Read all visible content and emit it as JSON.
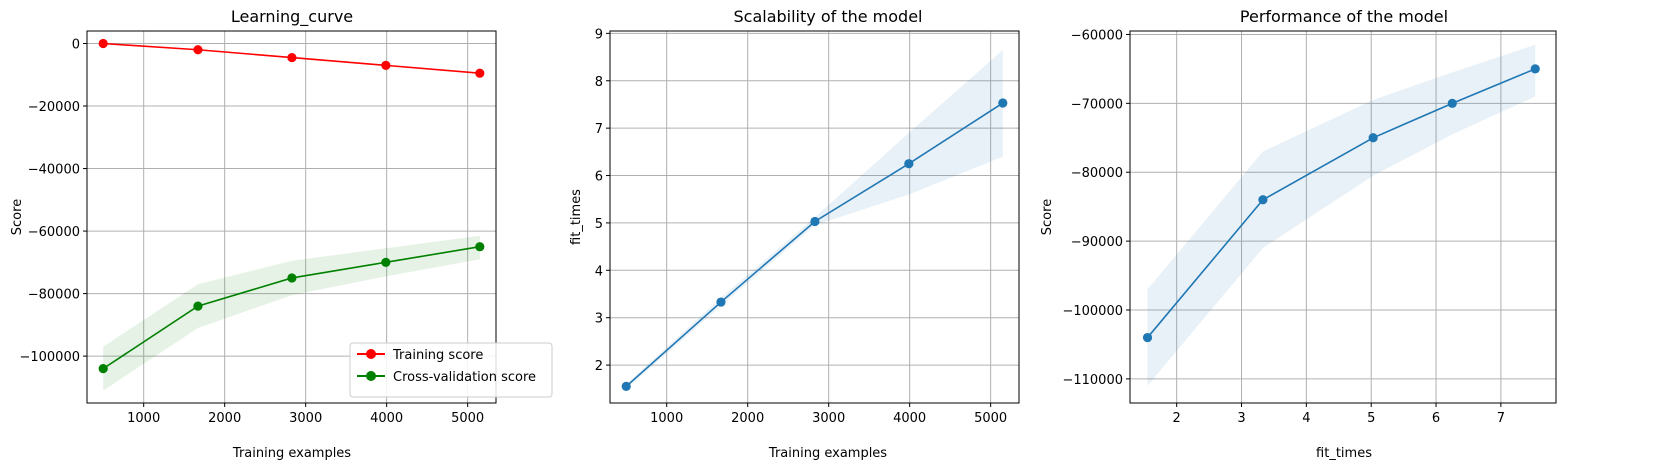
{
  "chart_data": [
    {
      "type": "line",
      "title": "Learning_curve",
      "xlabel": "Training examples",
      "ylabel": "Score",
      "xlim": [
        300,
        5350
      ],
      "ylim": [
        -115000,
        4000
      ],
      "xticks": [
        1000,
        2000,
        3000,
        4000,
        5000
      ],
      "yticks": [
        0,
        -20000,
        -40000,
        -60000,
        -80000,
        -100000
      ],
      "ytick_labels": [
        "0",
        "−20000",
        "−40000",
        "−60000",
        "−80000",
        "−100000"
      ],
      "grid": true,
      "legend": "bottom-right",
      "x": [
        500,
        1670,
        2830,
        3990,
        5150
      ],
      "series": [
        {
          "name": "Training score",
          "color": "#ff0000",
          "values": [
            0,
            -2000,
            -4500,
            -7000,
            -9500
          ],
          "band_low": [
            -100,
            -2200,
            -4700,
            -7200,
            -9700
          ],
          "band_high": [
            100,
            -1800,
            -4300,
            -6800,
            -9300
          ]
        },
        {
          "name": "Cross-validation score",
          "color": "#008000",
          "values": [
            -104000,
            -84000,
            -75000,
            -70000,
            -65000
          ],
          "band_low": [
            -111000,
            -91000,
            -80500,
            -74500,
            -69000
          ],
          "band_high": [
            -97000,
            -77000,
            -69500,
            -65500,
            -61500
          ]
        }
      ]
    },
    {
      "type": "line",
      "title": "Scalability of the model",
      "xlabel": "Training examples",
      "ylabel": "fit_times",
      "xlim": [
        300,
        5350
      ],
      "ylim": [
        1.2,
        9.05
      ],
      "xticks": [
        1000,
        2000,
        3000,
        4000,
        5000
      ],
      "yticks": [
        2,
        3,
        4,
        5,
        6,
        7,
        8,
        9
      ],
      "ytick_labels": [
        "2",
        "3",
        "4",
        "5",
        "6",
        "7",
        "8",
        "9"
      ],
      "grid": true,
      "x": [
        500,
        1670,
        2830,
        3990,
        5150
      ],
      "series": [
        {
          "color": "#1f77b4",
          "values": [
            1.55,
            3.33,
            5.03,
            6.25,
            7.53
          ],
          "band_low": [
            1.5,
            3.25,
            4.95,
            5.6,
            6.4
          ],
          "band_high": [
            1.6,
            3.42,
            5.12,
            6.9,
            8.65
          ]
        }
      ]
    },
    {
      "type": "line",
      "title": "Performance of the model",
      "xlabel": "fit_times",
      "ylabel": "Score",
      "xlim": [
        1.28,
        7.85
      ],
      "ylim": [
        -113500,
        -59500
      ],
      "xticks": [
        2,
        3,
        4,
        5,
        6,
        7
      ],
      "yticks": [
        -60000,
        -70000,
        -80000,
        -90000,
        -100000,
        -110000
      ],
      "ytick_labels": [
        "−60000",
        "−70000",
        "−80000",
        "−90000",
        "−100000",
        "−110000"
      ],
      "grid": true,
      "x": [
        1.55,
        3.33,
        5.03,
        6.25,
        7.53
      ],
      "series": [
        {
          "color": "#1f77b4",
          "values": [
            -104000,
            -84000,
            -75000,
            -70000,
            -65000
          ],
          "band_low": [
            -111000,
            -91000,
            -80500,
            -74500,
            -69000
          ],
          "band_high": [
            -97000,
            -77000,
            -69500,
            -65500,
            -61500
          ]
        }
      ]
    }
  ]
}
